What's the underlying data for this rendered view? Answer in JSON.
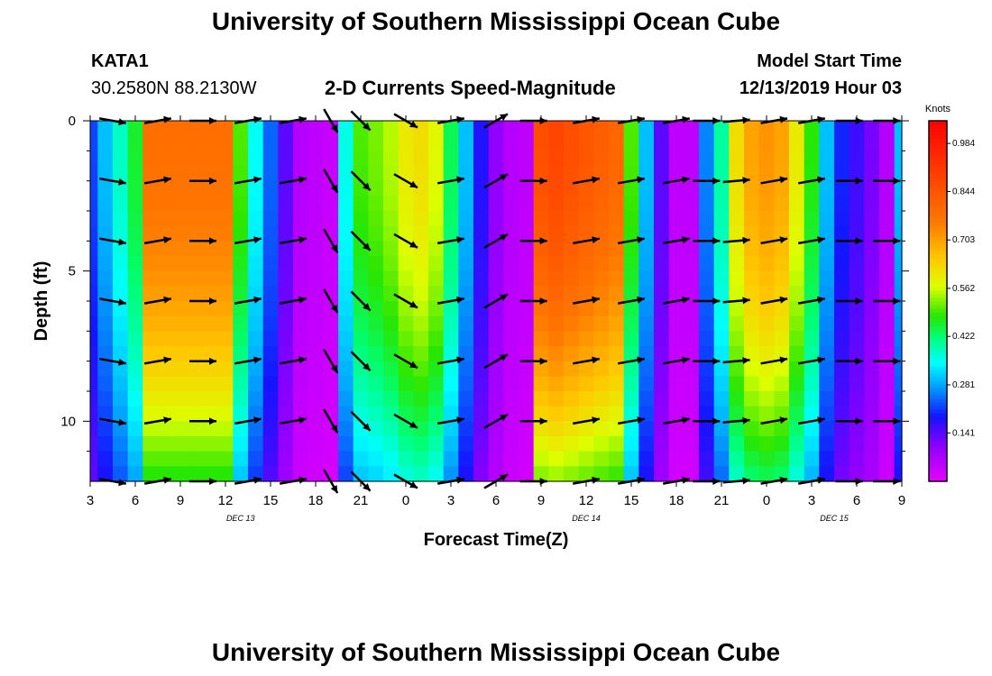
{
  "header": {
    "title": "University of Southern Mississippi Ocean Cube",
    "station": "KATA1",
    "coords": "30.2580N 88.2130W",
    "subtitle": "2-D Currents Speed-Magnitude",
    "model_start_label": "Model Start Time",
    "model_start_value": "12/13/2019 Hour 03"
  },
  "footer": {
    "title": "University of Southern Mississippi Ocean Cube"
  },
  "chart_data": {
    "type": "heatmap",
    "title": "2-D Currents Speed-Magnitude",
    "xlabel": "Forecast Time(Z)",
    "ylabel": "Depth (ft)",
    "x_hours_range": [
      0,
      54
    ],
    "x_ticks": [
      "3",
      "6",
      "9",
      "12",
      "15",
      "18",
      "21",
      "0",
      "3",
      "6",
      "9",
      "12",
      "15",
      "18",
      "21",
      "0",
      "3",
      "6",
      "9"
    ],
    "day_labels": [
      {
        "label": "DEC 13",
        "hour": 10
      },
      {
        "label": "DEC 14",
        "hour": 33
      },
      {
        "label": "DEC 15",
        "hour": 49.5
      }
    ],
    "y_range_ft": [
      0,
      12
    ],
    "y_ticks": [
      "0",
      "5",
      "10"
    ],
    "y_tick_values": [
      0,
      5,
      10
    ],
    "colorbar": {
      "unit": "Knots",
      "min": 0.0,
      "max": 1.05,
      "tick_labels": [
        "0.141",
        "0.281",
        "0.422",
        "0.562",
        "0.703",
        "0.844",
        "0.984"
      ],
      "tick_values": [
        0.141,
        0.281,
        0.422,
        0.562,
        0.703,
        0.844,
        0.984
      ]
    },
    "speed_profile": {
      "time_hours": [
        0,
        1,
        2,
        3,
        4,
        5,
        6,
        7,
        8,
        9,
        10,
        11,
        12,
        13,
        14,
        15,
        16,
        17,
        18,
        19,
        20,
        21,
        22,
        23,
        24,
        25,
        26,
        27,
        28,
        29,
        30,
        31,
        32,
        33,
        34,
        35,
        36,
        37,
        38,
        39,
        40,
        41,
        42,
        43,
        44,
        45,
        46,
        47,
        48,
        49,
        50,
        51,
        52,
        53,
        54
      ],
      "surface_knots": [
        0.22,
        0.3,
        0.38,
        0.46,
        0.78,
        0.78,
        0.78,
        0.78,
        0.78,
        0.78,
        0.5,
        0.35,
        0.24,
        0.14,
        0.06,
        0.05,
        0.04,
        0.36,
        0.5,
        0.52,
        0.55,
        0.6,
        0.62,
        0.58,
        0.44,
        0.3,
        0.18,
        0.1,
        0.06,
        0.05,
        0.86,
        0.88,
        0.86,
        0.84,
        0.82,
        0.8,
        0.5,
        0.3,
        0.14,
        0.05,
        0.05,
        0.26,
        0.4,
        0.62,
        0.7,
        0.72,
        0.7,
        0.6,
        0.48,
        0.3,
        0.2,
        0.16,
        0.12,
        0.06,
        0.3
      ],
      "depth_decay": 0.4
    },
    "vectors": {
      "time_hours": [
        1.5,
        4.5,
        7.5,
        10.5,
        13.5,
        16,
        18,
        21,
        24,
        27,
        29.5,
        33,
        36,
        39,
        41,
        43,
        45.5,
        48,
        50.5,
        53
      ],
      "depths_ft": [
        0,
        2,
        4,
        6,
        8,
        10,
        12
      ],
      "direction_deg": [
        170,
        190,
        180,
        190,
        190,
        120,
        135,
        150,
        190,
        210,
        180,
        190,
        190,
        190,
        180,
        185,
        190,
        190,
        180,
        180
      ]
    }
  }
}
